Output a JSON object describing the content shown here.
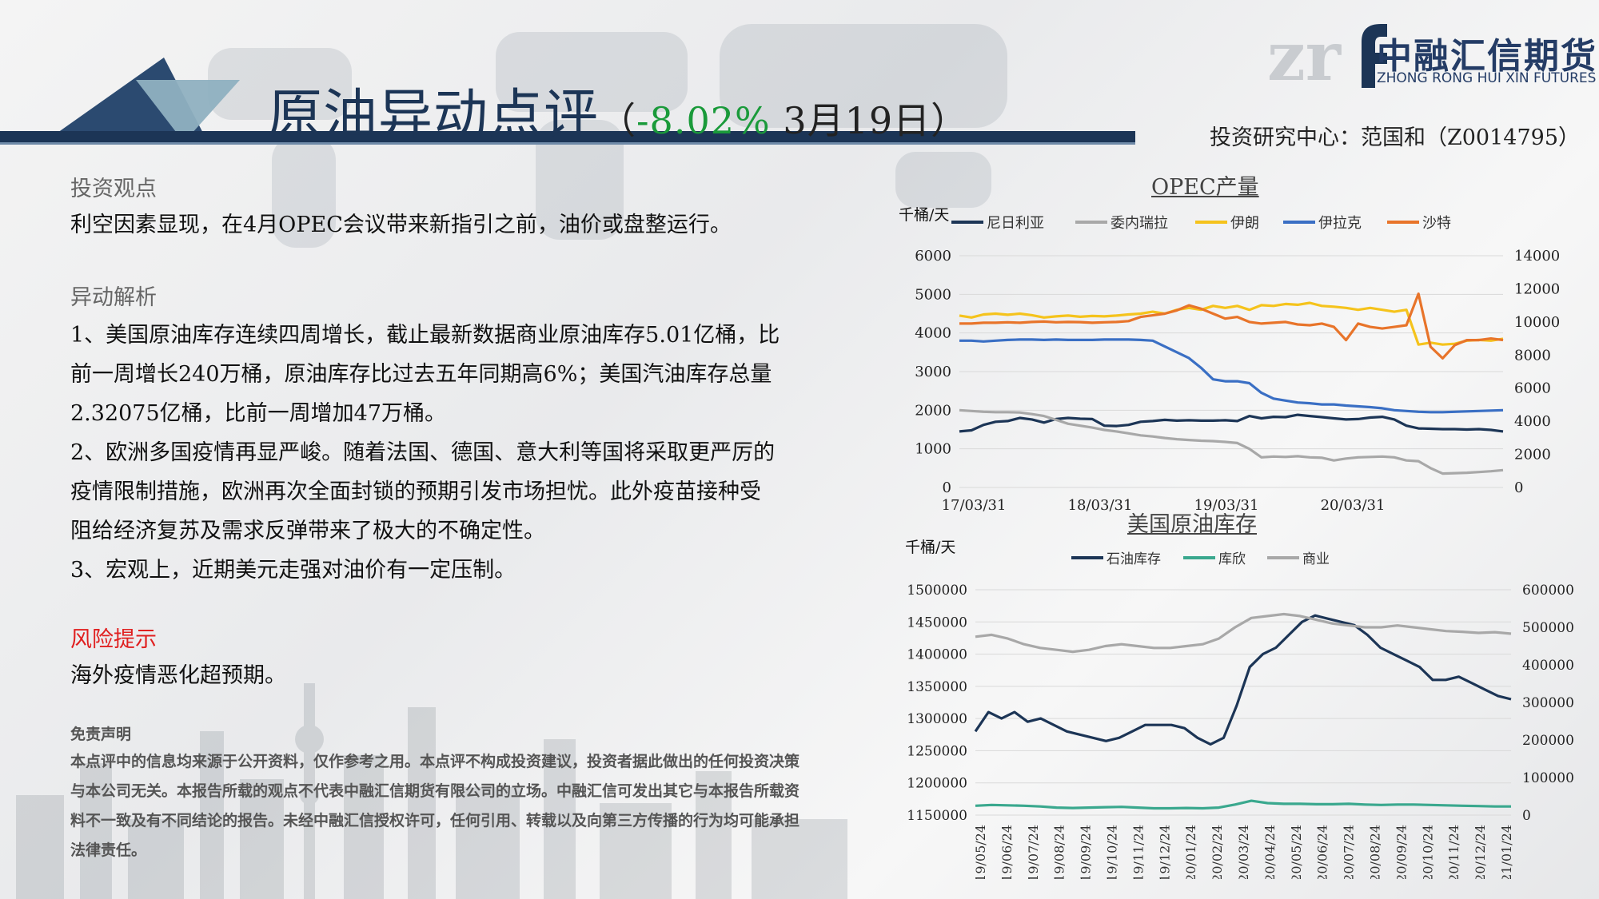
{
  "header": {
    "title_main": "原油异动点评",
    "title_open": "（",
    "title_pct": "-8.02%",
    "title_date": " 3月19日）",
    "author": "投资研究中心：范国和（Z0014795）",
    "logo_cn": "中融汇信期货",
    "logo_en": "ZHONG RONG HUI XIN FUTURES"
  },
  "content": {
    "view_heading": "投资观点",
    "view_text": "利空因素显现，在4月OPEC会议带来新指引之前，油价或盘整运行。",
    "analysis_heading": "异动解析",
    "analysis_items": [
      "1、美国原油库存连续四周增长，截止最新数据商业原油库存5.01亿桶，比前一周增长240万桶，原油库存比过去五年同期高6%；美国汽油库存总量2.32075亿桶，比前一周增加47万桶。",
      "2、欧洲多国疫情再显严峻。随着法国、德国、意大利等国将采取更严厉的疫情限制措施，欧洲再次全面封锁的预期引发市场担忧。此外疫苗接种受阻给经济复苏及需求反弹带来了极大的不确定性。",
      "3、宏观上，近期美元走强对油价有一定压制。"
    ],
    "risk_heading": "风险提示",
    "risk_text": "海外疫情恶化超预期。",
    "disclaimer_heading": "免责声明",
    "disclaimer_text": "本点评中的信息均来源于公开资料，仅作参考之用。本点评不构成投资建议，投资者据此做出的任何投资决策与本公司无关。本报告所载的观点不代表中融汇信期货有限公司的立场。中融汇信可发出其它与本报告所载资料不一致及有不同结论的报告。未经中融汇信授权许可，任何引用、转载以及向第三方传播的行为均可能承担法律责任。"
  },
  "chart_data": [
    {
      "type": "line",
      "title": "OPEC产量",
      "ylabel": "千桶/天",
      "x_ticks": [
        "17/03/31",
        "18/03/31",
        "19/03/31",
        "20/03/31"
      ],
      "ylim_left": [
        0,
        6000
      ],
      "yticks_left": [
        0,
        1000,
        2000,
        3000,
        4000,
        5000,
        6000
      ],
      "ylim_right": [
        0,
        14000
      ],
      "yticks_right": [
        0,
        2000,
        4000,
        6000,
        8000,
        10000,
        12000,
        14000
      ],
      "legend_position": "top",
      "grid": true,
      "series": [
        {
          "name": "尼日利亚",
          "color": "#1c3556",
          "axis": "left",
          "values": [
            1450,
            1480,
            1620,
            1700,
            1720,
            1800,
            1760,
            1680,
            1770,
            1800,
            1780,
            1770,
            1600,
            1590,
            1620,
            1700,
            1720,
            1750,
            1730,
            1740,
            1730,
            1730,
            1740,
            1720,
            1850,
            1790,
            1830,
            1820,
            1880,
            1850,
            1820,
            1790,
            1760,
            1770,
            1810,
            1830,
            1760,
            1600,
            1530,
            1520,
            1510,
            1510,
            1500,
            1510,
            1490,
            1450
          ]
        },
        {
          "name": "委内瑞拉",
          "color": "#a8a8a8",
          "axis": "left",
          "values": [
            2000,
            1980,
            1960,
            1950,
            1950,
            1940,
            1900,
            1850,
            1750,
            1650,
            1600,
            1550,
            1490,
            1450,
            1400,
            1350,
            1320,
            1280,
            1250,
            1230,
            1210,
            1200,
            1180,
            1150,
            1000,
            780,
            800,
            790,
            810,
            780,
            770,
            700,
            750,
            780,
            790,
            800,
            780,
            700,
            680,
            500,
            360,
            370,
            380,
            400,
            420,
            450
          ]
        },
        {
          "name": "伊朗",
          "color": "#f5c31c",
          "axis": "left",
          "values": [
            4450,
            4400,
            4480,
            4500,
            4470,
            4500,
            4460,
            4400,
            4430,
            4450,
            4420,
            4440,
            4430,
            4450,
            4480,
            4500,
            4550,
            4500,
            4600,
            4650,
            4600,
            4700,
            4650,
            4700,
            4600,
            4720,
            4700,
            4750,
            4730,
            4780,
            4700,
            4680,
            4650,
            4600,
            4650,
            4600,
            4550,
            4600,
            3700,
            3750,
            3700,
            3720,
            3800,
            3820,
            3800,
            3850
          ]
        },
        {
          "name": "伊拉克",
          "color": "#3a6fc4",
          "axis": "left",
          "values": [
            3800,
            3800,
            3780,
            3800,
            3820,
            3830,
            3830,
            3820,
            3830,
            3820,
            3820,
            3820,
            3830,
            3830,
            3830,
            3820,
            3800,
            3650,
            3500,
            3350,
            3100,
            2800,
            2750,
            2750,
            2700,
            2450,
            2300,
            2250,
            2200,
            2180,
            2150,
            2150,
            2120,
            2100,
            2080,
            2050,
            2000,
            1980,
            1960,
            1950,
            1950,
            1960,
            1970,
            1980,
            1990,
            2000
          ]
        },
        {
          "name": "沙特",
          "color": "#e8742a",
          "axis": "right",
          "values": [
            9900,
            9900,
            9950,
            9950,
            9980,
            9950,
            10000,
            10020,
            9980,
            10000,
            9990,
            9950,
            9980,
            10000,
            10050,
            10300,
            10400,
            10500,
            10700,
            11000,
            10800,
            10500,
            10200,
            10300,
            10000,
            9900,
            9950,
            10000,
            9850,
            9800,
            9900,
            9700,
            8900,
            9900,
            9700,
            9600,
            9700,
            9800,
            11700,
            8500,
            7800,
            8600,
            8900,
            8900,
            9000,
            8900
          ]
        }
      ]
    },
    {
      "type": "line",
      "title": "美国原油库存",
      "ylabel": "千桶/天",
      "x_ticks": [
        "19/05/24",
        "19/06/24",
        "19/07/24",
        "19/08/24",
        "19/09/24",
        "19/10/24",
        "19/11/24",
        "19/12/24",
        "20/01/24",
        "20/02/24",
        "20/03/24",
        "20/04/24",
        "20/05/24",
        "20/06/24",
        "20/07/24",
        "20/08/24",
        "20/09/24",
        "20/10/24",
        "20/11/24",
        "20/12/24",
        "21/01/24"
      ],
      "ylim_left": [
        1150000,
        1500000
      ],
      "yticks_left": [
        1150000,
        1200000,
        1250000,
        1300000,
        1350000,
        1400000,
        1450000,
        1500000
      ],
      "ylim_right": [
        0,
        600000
      ],
      "yticks_right": [
        0,
        100000,
        200000,
        300000,
        400000,
        500000,
        600000
      ],
      "legend_position": "top",
      "grid": true,
      "series": [
        {
          "name": "石油库存",
          "color": "#1c3556",
          "axis": "left",
          "values": [
            1280000,
            1310000,
            1300000,
            1310000,
            1295000,
            1300000,
            1290000,
            1280000,
            1275000,
            1270000,
            1265000,
            1270000,
            1280000,
            1290000,
            1290000,
            1290000,
            1285000,
            1270000,
            1260000,
            1270000,
            1320000,
            1380000,
            1400000,
            1410000,
            1430000,
            1450000,
            1460000,
            1455000,
            1450000,
            1445000,
            1430000,
            1410000,
            1400000,
            1390000,
            1380000,
            1360000,
            1360000,
            1365000,
            1355000,
            1345000,
            1335000,
            1330000
          ]
        },
        {
          "name": "库欣",
          "color": "#3aa88e",
          "axis": "right",
          "values": [
            25000,
            27000,
            26000,
            25000,
            23000,
            20000,
            19000,
            20000,
            21000,
            22000,
            20000,
            18000,
            18000,
            19000,
            18000,
            20000,
            28000,
            38000,
            32000,
            30000,
            30000,
            29000,
            29000,
            30000,
            28000,
            27000,
            28000,
            28000,
            27000,
            26000,
            25000,
            24000,
            23000,
            23000
          ]
        },
        {
          "name": "商业",
          "color": "#a8a8a8",
          "axis": "right",
          "values": [
            475000,
            480000,
            470000,
            455000,
            445000,
            440000,
            435000,
            440000,
            450000,
            455000,
            450000,
            445000,
            445000,
            450000,
            455000,
            470000,
            500000,
            525000,
            530000,
            535000,
            530000,
            520000,
            510000,
            505000,
            500000,
            500000,
            505000,
            500000,
            495000,
            490000,
            488000,
            485000,
            487000,
            483000
          ]
        }
      ]
    }
  ]
}
